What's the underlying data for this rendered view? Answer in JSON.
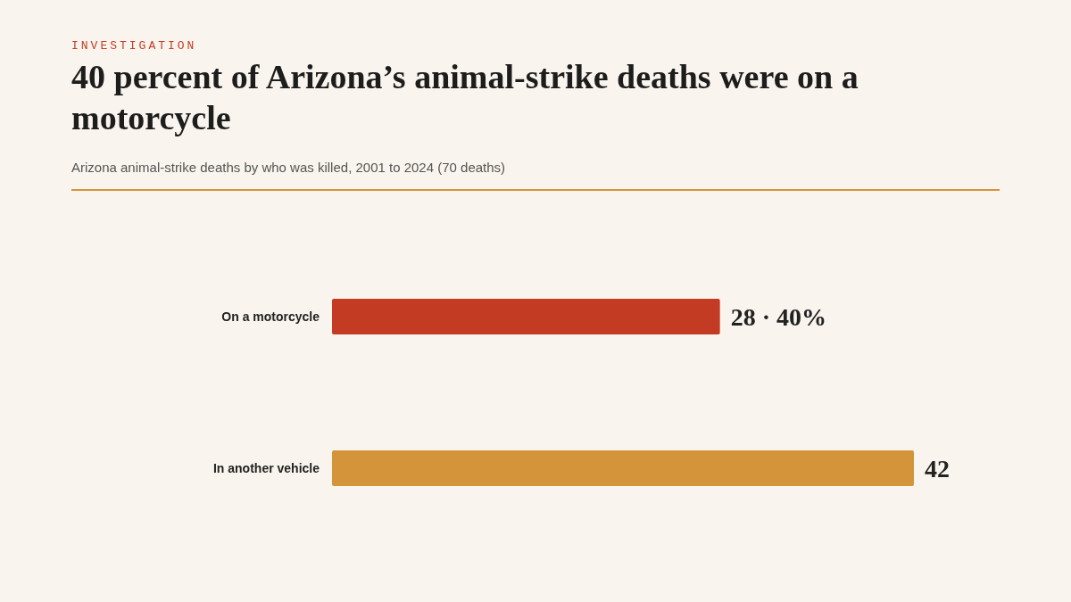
{
  "chart_data": {
    "type": "bar",
    "orientation": "horizontal",
    "title": "40 percent of Arizona’s animal-strike deaths were on a motorcycle",
    "subtitle": "Arizona animal-strike deaths by who was killed, 2001 to 2024 (70 deaths)",
    "annotations": [
      "INVESTIGATION"
    ],
    "categories": [
      "On a motorcycle",
      "In another vehicle"
    ],
    "values": [
      28,
      42
    ],
    "colors": [
      "#c43b24",
      "#d4953a"
    ],
    "value_labels": [
      "28 · 40%",
      "42"
    ]
  }
}
